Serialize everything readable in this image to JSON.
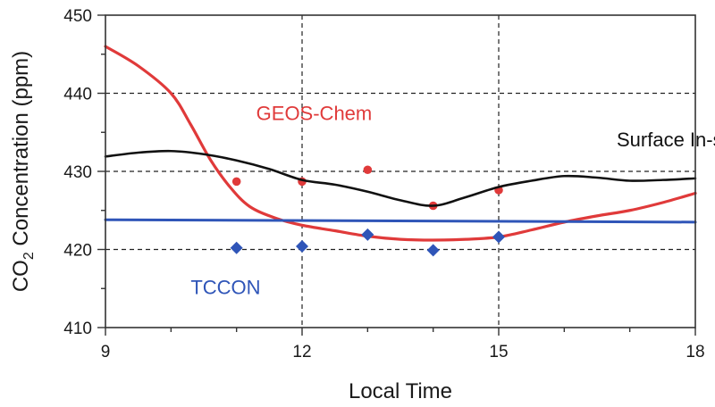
{
  "chart_data": {
    "type": "line",
    "xlabel": "Local Time",
    "ylabel": {
      "prefix": "CO",
      "subscript": "2",
      "suffix": " Concentration (ppm)"
    },
    "xlim": [
      9,
      18
    ],
    "ylim": [
      410,
      450
    ],
    "xticks": [
      9,
      12,
      15,
      18
    ],
    "yticks": [
      410,
      420,
      430,
      440,
      450
    ],
    "x_minor_step": 1,
    "y_minor_step": 5,
    "grid": "dashed at major ticks",
    "colors": {
      "geos_chem": "#e03a3a",
      "surface_insitu": "#111111",
      "tccon": "#2f55b8",
      "axis": "#333333",
      "grid": "#222222"
    },
    "series": [
      {
        "name": "GEOS-Chem",
        "label_text": "GEOS-Chem",
        "style": "line",
        "color": "#e03a3a",
        "x": [
          9,
          9.5,
          10,
          10.3,
          10.6,
          10.9,
          11.2,
          11.6,
          12,
          12.5,
          13,
          13.5,
          14,
          14.5,
          15,
          15.5,
          16,
          16.5,
          17,
          17.5,
          18
        ],
        "y": [
          446,
          443.5,
          440,
          436,
          431.5,
          428,
          425.5,
          424,
          423.1,
          422.4,
          421.7,
          421.3,
          421.2,
          421.3,
          421.6,
          422.5,
          423.5,
          424.3,
          425,
          426,
          427.2
        ]
      },
      {
        "name": "GEOS-Chem points",
        "style": "dots",
        "color": "#e03a3a",
        "x": [
          11,
          12,
          13,
          14,
          15
        ],
        "y": [
          428.7,
          428.7,
          430.2,
          425.6,
          427.6
        ]
      },
      {
        "name": "Surface In-situu",
        "label_text": "Surface In-situ",
        "style": "line",
        "color": "#111111",
        "x": [
          9,
          9.5,
          10,
          10.5,
          11,
          11.5,
          12,
          12.5,
          13,
          13.5,
          14,
          14.5,
          15,
          15.5,
          16,
          16.5,
          17,
          17.5,
          18
        ],
        "y": [
          431.9,
          432.4,
          432.6,
          432.2,
          431.4,
          430.3,
          428.9,
          428.3,
          427.4,
          426.3,
          425.6,
          426.7,
          428.0,
          428.8,
          429.4,
          429.2,
          428.8,
          428.9,
          429.1
        ]
      },
      {
        "name": "TCCON",
        "label_text": "TCCON",
        "style": "line",
        "color": "#2f55b8",
        "x": [
          9,
          18
        ],
        "y": [
          423.8,
          423.5
        ]
      },
      {
        "name": "TCCON points",
        "style": "diamonds",
        "color": "#2f55b8",
        "x": [
          11,
          12,
          13,
          14,
          15
        ],
        "y": [
          420.2,
          420.4,
          421.9,
          419.9,
          421.6
        ]
      }
    ],
    "annotations": [
      {
        "series": "GEOS-Chem",
        "text": "GEOS-Chem",
        "at_x": 11.3,
        "at_y": 436.6,
        "color": "#e03a3a"
      },
      {
        "series": "Surface In-situ",
        "text": "Surface In-situ",
        "at_x": 16.8,
        "at_y": 433.2,
        "color": "#111111"
      },
      {
        "series": "TCCON",
        "text": "TCCON",
        "at_x": 10.3,
        "at_y": 414.3,
        "color": "#2f55b8"
      }
    ]
  }
}
